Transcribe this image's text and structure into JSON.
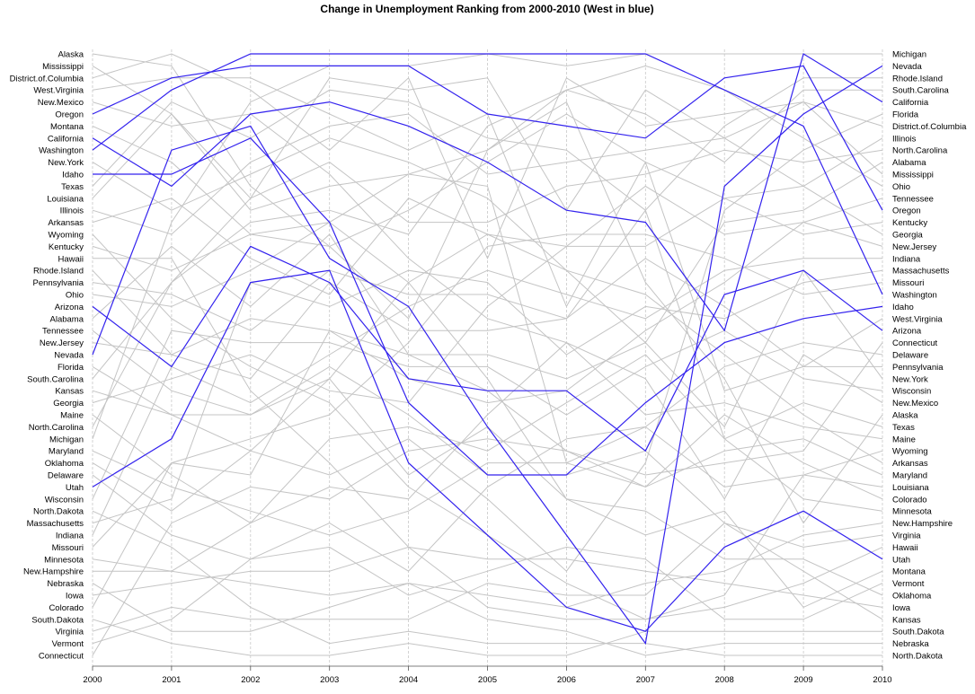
{
  "chart_data": {
    "type": "line",
    "title": "Change in Unemployment Ranking from 2000-2010 (West in blue)",
    "xlabel": "",
    "ylabel": "",
    "years": [
      "2000",
      "2001",
      "2002",
      "2003",
      "2004",
      "2005",
      "2006",
      "2007",
      "2008",
      "2009",
      "2010"
    ],
    "left_labels": [
      "Alaska",
      "Mississippi",
      "District.of.Columbia",
      "West.Virginia",
      "New.Mexico",
      "Oregon",
      "Montana",
      "California",
      "Washington",
      "New.York",
      "Idaho",
      "Texas",
      "Louisiana",
      "Illinois",
      "Arkansas",
      "Wyoming",
      "Kentucky",
      "Hawaii",
      "Rhode.Island",
      "Pennsylvania",
      "Ohio",
      "Arizona",
      "Alabama",
      "Tennessee",
      "New.Jersey",
      "Nevada",
      "Florida",
      "South.Carolina",
      "Kansas",
      "Georgia",
      "Maine",
      "North.Carolina",
      "Michigan",
      "Maryland",
      "Oklahoma",
      "Delaware",
      "Utah",
      "Wisconsin",
      "North.Dakota",
      "Massachusetts",
      "Indiana",
      "Missouri",
      "Minnesota",
      "New.Hampshire",
      "Nebraska",
      "Iowa",
      "Colorado",
      "South.Dakota",
      "Virginia",
      "Vermont",
      "Connecticut"
    ],
    "right_labels": [
      "Michigan",
      "Nevada",
      "Rhode.Island",
      "South.Carolina",
      "California",
      "Florida",
      "District.of.Columbia",
      "Illinois",
      "North.Carolina",
      "Alabama",
      "Mississippi",
      "Ohio",
      "Tennessee",
      "Oregon",
      "Kentucky",
      "Georgia",
      "New.Jersey",
      "Indiana",
      "Massachusetts",
      "Missouri",
      "Washington",
      "Idaho",
      "West.Virginia",
      "Arizona",
      "Connecticut",
      "Delaware",
      "Pennsylvania",
      "New.York",
      "Wisconsin",
      "New.Mexico",
      "Alaska",
      "Texas",
      "Maine",
      "Wyoming",
      "Arkansas",
      "Maryland",
      "Louisiana",
      "Colorado",
      "Minnesota",
      "New.Hampshire",
      "Virginia",
      "Hawaii",
      "Utah",
      "Montana",
      "Vermont",
      "Oklahoma",
      "Iowa",
      "Kansas",
      "South.Dakota",
      "Nebraska",
      "North.Dakota"
    ],
    "ylim": [
      1,
      51
    ],
    "west_series": [
      {
        "state": "Oregon",
        "ranks": [
          6,
          3,
          2,
          2,
          2,
          6,
          7,
          8,
          3,
          2,
          14
        ]
      },
      {
        "state": "Washington",
        "ranks": [
          9,
          4,
          1,
          1,
          1,
          1,
          1,
          1,
          4,
          7,
          21
        ]
      },
      {
        "state": "California",
        "ranks": [
          8,
          12,
          6,
          5,
          7,
          10,
          14,
          15,
          24,
          1,
          5
        ]
      },
      {
        "state": "Idaho",
        "ranks": [
          11,
          11,
          8,
          15,
          30,
          36,
          36,
          30,
          25,
          23,
          22
        ]
      },
      {
        "state": "Arizona",
        "ranks": [
          22,
          27,
          17,
          20,
          28,
          29,
          29,
          34,
          21,
          19,
          24
        ]
      },
      {
        "state": "Nevada",
        "ranks": [
          26,
          9,
          7,
          18,
          22,
          32,
          41,
          50,
          12,
          6,
          2
        ]
      },
      {
        "state": "Utah",
        "ranks": [
          37,
          33,
          20,
          19,
          35,
          41,
          47,
          49,
          42,
          39,
          43
        ]
      }
    ],
    "other_series": [
      {
        "state": "Alaska",
        "ranks": [
          1,
          2,
          12,
          17,
          23,
          9,
          5,
          20,
          28,
          40,
          31
        ]
      },
      {
        "state": "Mississippi",
        "ranks": [
          2,
          6,
          13,
          3,
          4,
          3,
          14,
          4,
          8,
          5,
          11
        ]
      },
      {
        "state": "District.of.Columbia",
        "ranks": [
          3,
          1,
          4,
          9,
          3,
          18,
          3,
          7,
          6,
          5,
          7
        ]
      },
      {
        "state": "West.Virginia",
        "ranks": [
          4,
          3,
          3,
          6,
          9,
          6,
          22,
          10,
          29,
          27,
          23
        ]
      },
      {
        "state": "New.Mexico",
        "ranks": [
          5,
          7,
          6,
          11,
          18,
          23,
          25,
          28,
          38,
          26,
          30
        ]
      },
      {
        "state": "Montana",
        "ranks": [
          7,
          10,
          16,
          15,
          20,
          28,
          38,
          41,
          39,
          47,
          44
        ]
      },
      {
        "state": "New.York",
        "ranks": [
          10,
          14,
          11,
          8,
          10,
          13,
          19,
          25,
          32,
          19,
          28
        ]
      },
      {
        "state": "Texas",
        "ranks": [
          12,
          5,
          8,
          4,
          5,
          8,
          9,
          14,
          33,
          30,
          32
        ]
      },
      {
        "state": "Louisiana",
        "ranks": [
          13,
          6,
          14,
          12,
          11,
          12,
          35,
          32,
          37,
          36,
          37
        ]
      },
      {
        "state": "Illinois",
        "ranks": [
          14,
          16,
          10,
          7,
          6,
          11,
          10,
          9,
          8,
          12,
          8
        ]
      },
      {
        "state": "Arkansas",
        "ranks": [
          15,
          13,
          18,
          21,
          13,
          16,
          19,
          21,
          26,
          31,
          35
        ]
      },
      {
        "state": "Wyoming",
        "ranks": [
          16,
          23,
          27,
          30,
          37,
          41,
          45,
          48,
          46,
          36,
          34
        ]
      },
      {
        "state": "Kentucky",
        "ranks": [
          17,
          19,
          16,
          17,
          14,
          10,
          6,
          10,
          13,
          16,
          15
        ]
      },
      {
        "state": "Hawaii",
        "ranks": [
          18,
          18,
          29,
          35,
          42,
          47,
          48,
          48,
          47,
          45,
          42
        ]
      },
      {
        "state": "Rhode.Island",
        "ranks": [
          19,
          26,
          28,
          20,
          24,
          24,
          23,
          14,
          7,
          3,
          3
        ]
      },
      {
        "state": "Pennsylvania",
        "ranks": [
          20,
          21,
          24,
          19,
          21,
          21,
          23,
          18,
          22,
          27,
          27
        ]
      },
      {
        "state": "Ohio",
        "ranks": [
          21,
          22,
          19,
          15,
          11,
          9,
          4,
          2,
          4,
          8,
          12
        ]
      },
      {
        "state": "Alabama",
        "ranks": [
          23,
          17,
          22,
          16,
          26,
          26,
          28,
          25,
          15,
          14,
          10
        ]
      },
      {
        "state": "Tennessee",
        "ranks": [
          24,
          29,
          31,
          28,
          20,
          16,
          17,
          12,
          16,
          15,
          13
        ]
      },
      {
        "state": "New.Jersey",
        "ranks": [
          25,
          26,
          23,
          24,
          28,
          30,
          29,
          24,
          20,
          15,
          17
        ]
      },
      {
        "state": "Florida",
        "ranks": [
          27,
          31,
          34,
          36,
          33,
          38,
          44,
          35,
          14,
          9,
          6
        ]
      },
      {
        "state": "South.Carolina",
        "ranks": [
          28,
          20,
          15,
          14,
          16,
          7,
          4,
          6,
          10,
          4,
          4
        ]
      },
      {
        "state": "Kansas",
        "ranks": [
          29,
          31,
          31,
          27,
          31,
          36,
          36,
          34,
          40,
          44,
          48
        ]
      },
      {
        "state": "Georgia",
        "ranks": [
          30,
          28,
          26,
          29,
          30,
          22,
          17,
          17,
          13,
          12,
          16
        ]
      },
      {
        "state": "Maine",
        "ranks": [
          31,
          36,
          40,
          37,
          38,
          31,
          25,
          31,
          30,
          32,
          33
        ]
      },
      {
        "state": "North.Carolina",
        "ranks": [
          32,
          20,
          13,
          10,
          15,
          15,
          12,
          11,
          9,
          10,
          9
        ]
      },
      {
        "state": "Michigan",
        "ranks": [
          33,
          15,
          5,
          2,
          2,
          1,
          2,
          1,
          1,
          1,
          1
        ]
      },
      {
        "state": "Maryland",
        "ranks": [
          34,
          37,
          39,
          41,
          39,
          35,
          35,
          37,
          34,
          33,
          36
        ]
      },
      {
        "state": "Oklahoma",
        "ranks": [
          35,
          39,
          34,
          28,
          36,
          32,
          38,
          39,
          43,
          43,
          46
        ]
      },
      {
        "state": "Delaware",
        "ranks": [
          36,
          41,
          43,
          40,
          44,
          37,
          33,
          32,
          27,
          25,
          26
        ]
      },
      {
        "state": "Wisconsin",
        "ranks": [
          38,
          24,
          25,
          25,
          27,
          27,
          31,
          27,
          24,
          28,
          29
        ]
      },
      {
        "state": "North.Dakota",
        "ranks": [
          39,
          42,
          47,
          50,
          49,
          50,
          50,
          50,
          51,
          51,
          51
        ]
      },
      {
        "state": "Massachusetts",
        "ranks": [
          40,
          38,
          20,
          22,
          19,
          20,
          26,
          22,
          23,
          20,
          19
        ]
      },
      {
        "state": "Indiana",
        "ranks": [
          41,
          27,
          30,
          26,
          22,
          19,
          21,
          23,
          19,
          18,
          18
        ]
      },
      {
        "state": "Missouri",
        "ranks": [
          42,
          35,
          33,
          31,
          25,
          17,
          16,
          16,
          18,
          21,
          20
        ]
      },
      {
        "state": "Minnesota",
        "ranks": [
          43,
          44,
          40,
          33,
          32,
          34,
          30,
          26,
          33,
          38,
          39
        ]
      },
      {
        "state": "New.Hampshire",
        "ranks": [
          44,
          44,
          45,
          46,
          45,
          46,
          47,
          45,
          44,
          41,
          40
        ]
      },
      {
        "state": "Nebraska",
        "ranks": [
          45,
          49,
          49,
          47,
          45,
          48,
          49,
          51,
          50,
          50,
          50
        ]
      },
      {
        "state": "Iowa",
        "ranks": [
          46,
          45,
          44,
          44,
          42,
          43,
          43,
          44,
          45,
          46,
          47
        ]
      },
      {
        "state": "Colorado",
        "ranks": [
          47,
          35,
          36,
          24,
          26,
          29,
          34,
          37,
          31,
          35,
          38
        ]
      },
      {
        "state": "South.Dakota",
        "ranks": [
          48,
          50,
          51,
          51,
          50,
          51,
          51,
          49,
          49,
          49,
          49
        ]
      },
      {
        "state": "Virginia",
        "ranks": [
          49,
          47,
          48,
          48,
          48,
          45,
          46,
          46,
          40,
          42,
          41
        ]
      },
      {
        "state": "Vermont",
        "ranks": [
          50,
          48,
          43,
          42,
          46,
          44,
          42,
          43,
          48,
          48,
          45
        ]
      },
      {
        "state": "Connecticut",
        "ranks": [
          51,
          40,
          37,
          38,
          34,
          33,
          34,
          36,
          35,
          34,
          25
        ]
      }
    ]
  }
}
